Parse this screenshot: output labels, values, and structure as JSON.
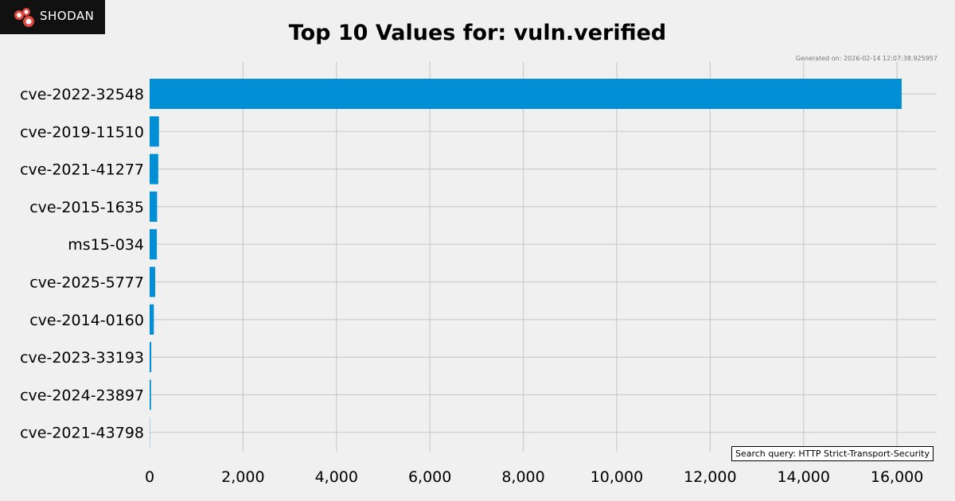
{
  "logo": {
    "text": "SHODAN",
    "accent_color": "#e0473f"
  },
  "generated": "Generated on: 2026-02-14 12:07:38.925957",
  "search_query": "Search query: HTTP Strict-Transport-Security",
  "chart_data": {
    "type": "bar",
    "orientation": "horizontal",
    "title": "Top 10 Values for: vuln.verified",
    "xlabel": "",
    "ylabel": "",
    "categories": [
      "cve-2022-32548",
      "cve-2019-11510",
      "cve-2021-41277",
      "cve-2015-1635",
      "ms15-034",
      "cve-2025-5777",
      "cve-2014-0160",
      "cve-2023-33193",
      "cve-2024-23897",
      "cve-2021-43798"
    ],
    "values": [
      16100,
      200,
      185,
      160,
      155,
      120,
      90,
      35,
      30,
      5
    ],
    "xlim": [
      0,
      16850
    ],
    "xticks": [
      0,
      2000,
      4000,
      6000,
      8000,
      10000,
      12000,
      14000,
      16000
    ],
    "xtick_labels": [
      "0",
      "2,000",
      "4,000",
      "6,000",
      "8,000",
      "10,000",
      "12,000",
      "14,000",
      "16,000"
    ],
    "bar_color": "#008fd5",
    "grid": true,
    "grid_color": "#cbcbcb"
  }
}
